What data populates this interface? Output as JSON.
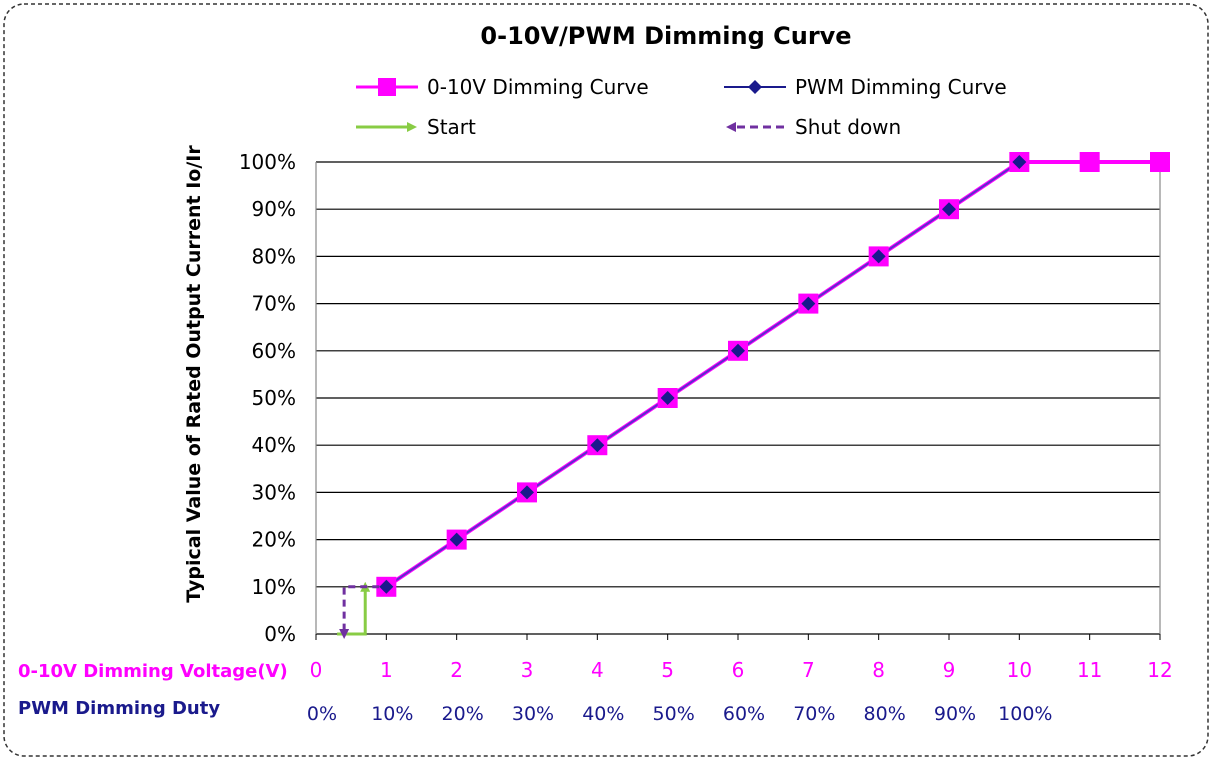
{
  "chart_data": {
    "type": "line",
    "title": "0-10V/PWM Dimming Curve",
    "ylabel": "Typical Value of Rated Output Current Io/Ir",
    "xlabel_voltage": "0-10V Dimming Voltage(V)",
    "xlabel_duty": "PWM Dimming Duty",
    "ylim": [
      0,
      100
    ],
    "xlim": [
      0,
      12
    ],
    "y_ticks": [
      "0%",
      "10%",
      "20%",
      "30%",
      "40%",
      "50%",
      "60%",
      "70%",
      "80%",
      "90%",
      "100%"
    ],
    "x_ticks_voltage": [
      "0",
      "1",
      "2",
      "3",
      "4",
      "5",
      "6",
      "7",
      "8",
      "9",
      "10",
      "11",
      "12"
    ],
    "x_ticks_duty": [
      "0%",
      "10%",
      "20%",
      "30%",
      "40%",
      "50%",
      "60%",
      "70%",
      "80%",
      "90%",
      "100%"
    ],
    "grid": "horizontal",
    "legend_position": "top",
    "series": [
      {
        "name": "0-10V Dimming Curve",
        "color": "#ff00ff",
        "marker": "square",
        "x": [
          1,
          2,
          3,
          4,
          5,
          6,
          7,
          8,
          9,
          10,
          11,
          12
        ],
        "y": [
          10,
          20,
          30,
          40,
          50,
          60,
          70,
          80,
          90,
          100,
          100,
          100
        ]
      },
      {
        "name": "PWM Dimming Curve",
        "color": "#1a1a8c",
        "marker": "diamond",
        "x": [
          1,
          2,
          3,
          4,
          5,
          6,
          7,
          8,
          9,
          10
        ],
        "y": [
          10,
          20,
          30,
          40,
          50,
          60,
          70,
          80,
          90,
          100
        ]
      }
    ],
    "annotations": [
      {
        "name": "Start",
        "color": "#88cc44",
        "style": "solid-arrow",
        "x": [
          0.3,
          0.7,
          0.7
        ],
        "y": [
          0,
          0,
          10
        ]
      },
      {
        "name": "Shut down",
        "color": "#7030a0",
        "style": "dashed-arrow",
        "x": [
          0.9,
          0.4,
          0.4
        ],
        "y": [
          10,
          10,
          0
        ]
      }
    ],
    "colors": {
      "voltage_axis_text": "#ff00ff",
      "duty_axis_text": "#1a1a8c",
      "grid": "#000000",
      "frame": "#333333"
    }
  }
}
